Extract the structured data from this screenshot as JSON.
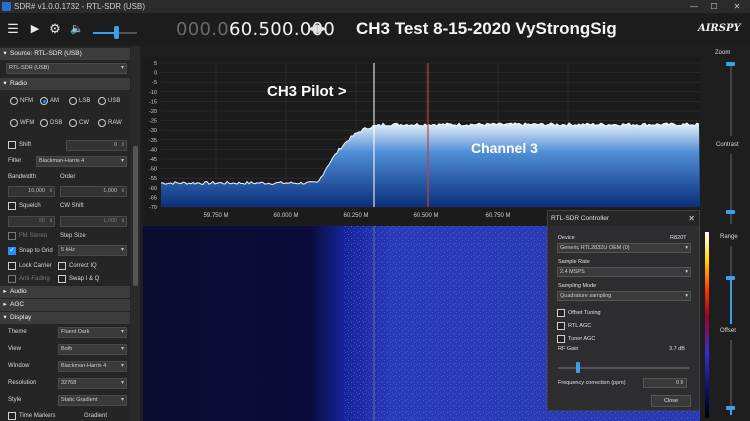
{
  "window": {
    "title": "SDR# v1.0.0.1732 - RTL-SDR (USB)",
    "min_label": "—",
    "max_label": "☐",
    "close_label": "✕"
  },
  "toolbar": {
    "frequency_dim": "000.0",
    "frequency_bright": "60.500.000",
    "frequency_arrows": "◀▶",
    "headline": "CH3 Test 8-15-2020  VyStrongSig",
    "logo": "AIRSPY",
    "volume_percent": 52
  },
  "left_panel": {
    "source_header": "Source: RTL-SDR (USB)",
    "source_value": "RTL-SDR (USB)",
    "radio_header": "Radio",
    "modes": [
      {
        "label": "NFM",
        "selected": false
      },
      {
        "label": "AM",
        "selected": true
      },
      {
        "label": "LSB",
        "selected": false
      },
      {
        "label": "USB",
        "selected": false
      },
      {
        "label": "WFM",
        "selected": false
      },
      {
        "label": "DSB",
        "selected": false
      },
      {
        "label": "CW",
        "selected": false
      },
      {
        "label": "RAW",
        "selected": false
      }
    ],
    "shift_label": "Shift",
    "shift_value": "0",
    "filter_label": "Filter",
    "filter_value": "Blackman-Harris 4",
    "bandwidth_label": "Bandwidth",
    "bandwidth_value": "10,000",
    "order_label": "Order",
    "order_value": "1,000",
    "squelch_label": "Squelch",
    "squelch_value": "50",
    "cw_shift_label": "CW Shift",
    "cw_shift_value": "1,000",
    "fm_stereo_label": "FM Stereo",
    "step_size_label": "Step Size",
    "snap_label": "Snap to Grid",
    "step_value": "5 kHz",
    "lock_carrier_label": "Lock Carrier",
    "correct_iq_label": "Correct IQ",
    "anti_fading_label": "Anti-Fading",
    "swap_iq_label": "Swap I & Q",
    "audio_header": "Audio",
    "agc_header": "AGC",
    "display_header": "Display",
    "theme_label": "Theme",
    "theme_value": "Fluent Dark",
    "view_label": "View",
    "view_value": "Both",
    "window_label": "Window",
    "window_value": "Blackman-Harris 4",
    "resolution_label": "Resolution",
    "resolution_value": "32768",
    "style_label": "Style",
    "style_value": "Static Gradient",
    "time_markers_label": "Time Markers",
    "gradient_label": "Gradient"
  },
  "spectrum": {
    "y_ticks": [
      "5",
      "0",
      "-5",
      "-10",
      "-15",
      "-20",
      "-25",
      "-30",
      "-35",
      "-40",
      "-45",
      "-50",
      "-55",
      "-60",
      "-65",
      "-70"
    ],
    "x_ticks": [
      "59.750 M",
      "60.000 M",
      "60.250 M",
      "60.500 M",
      "60.750 M",
      "61.000 M"
    ],
    "annotation_pilot": "CH3 Pilot >",
    "annotation_channel": "Channel 3",
    "corner_value": "2",
    "colors": {
      "signal_top": "#e8f1fb",
      "signal_mid": "#4f8ed6",
      "signal_bottom": "#0a2f7a",
      "tuned_line": "#c0404a",
      "pilot_line": "#ffffff"
    }
  },
  "right_panel": {
    "zoom_label": "Zoom",
    "contrast_label": "Contrast",
    "range_label": "Range",
    "offset_label": "Offset"
  },
  "controller": {
    "title": "RTL-SDR Controller",
    "close_label": "✕",
    "device_label": "Device",
    "device_tuner": "R820T",
    "device_value": "Generic RTL2832U OEM (0)",
    "sample_rate_label": "Sample Rate",
    "sample_rate_value": "2.4 MSPS",
    "sampling_mode_label": "Sampling Mode",
    "sampling_mode_value": "Quadrature sampling",
    "offset_tuning_label": "Offset Tuning",
    "rtl_agc_label": "RTL AGC",
    "tuner_agc_label": "Tuner AGC",
    "rf_gain_label": "RF Gain",
    "rf_gain_value": "3.7 dB",
    "freq_corr_label": "Frequency correction (ppm)",
    "freq_corr_value": "0",
    "close_button": "Close"
  }
}
